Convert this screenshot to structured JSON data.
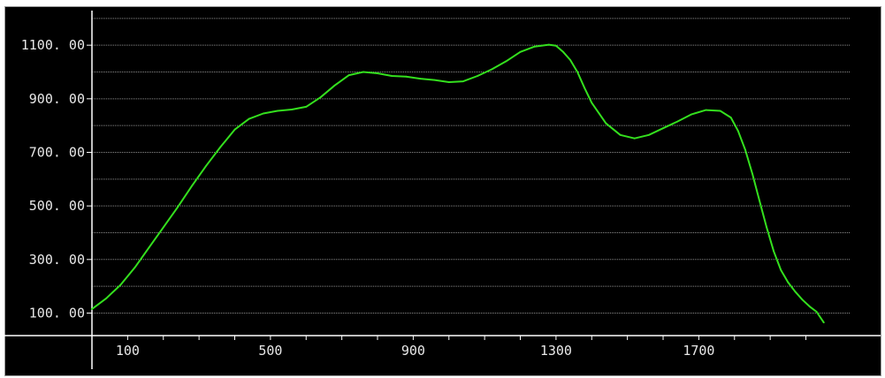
{
  "chart_data": {
    "type": "line",
    "title": "",
    "xlabel": "",
    "ylabel": "",
    "xlim": [
      0,
      2125
    ],
    "ylim": [
      0,
      1260
    ],
    "grid": true,
    "colors": {
      "background": "#000000",
      "line": "#34e01e",
      "grid": "#8c8c8c",
      "axis": "#ffffff",
      "text": "#e8e8e8"
    },
    "x_ticks": [
      {
        "value": 100,
        "label": "100"
      },
      {
        "value": 500,
        "label": "500"
      },
      {
        "value": 900,
        "label": "900"
      },
      {
        "value": 1300,
        "label": "1300"
      },
      {
        "value": 1700,
        "label": "1700"
      }
    ],
    "y_ticks": [
      {
        "value": 100,
        "label": "100. 00"
      },
      {
        "value": 300,
        "label": "300. 00"
      },
      {
        "value": 500,
        "label": "500. 00"
      },
      {
        "value": 700,
        "label": "700. 00"
      },
      {
        "value": 900,
        "label": "900. 00"
      },
      {
        "value": 1100,
        "label": "1100. 00"
      }
    ],
    "series": [
      {
        "x": [
          0,
          40,
          80,
          120,
          160,
          200,
          240,
          280,
          320,
          360,
          400,
          440,
          480,
          520,
          560,
          600,
          640,
          680,
          720,
          760,
          800,
          840,
          880,
          920,
          960,
          1000,
          1040,
          1080,
          1120,
          1160,
          1200,
          1240,
          1280,
          1300,
          1320,
          1340,
          1360,
          1380,
          1400,
          1440,
          1480,
          1520,
          1560,
          1600,
          1640,
          1680,
          1720,
          1760,
          1790,
          1810,
          1830,
          1850,
          1870,
          1890,
          1910,
          1930,
          1950,
          1970,
          1990,
          2010,
          2030,
          2050
        ],
        "y": [
          115,
          155,
          205,
          270,
          345,
          420,
          495,
          575,
          650,
          720,
          785,
          825,
          845,
          855,
          860,
          870,
          905,
          950,
          988,
          1000,
          995,
          985,
          983,
          975,
          970,
          962,
          965,
          985,
          1010,
          1040,
          1075,
          1095,
          1102,
          1098,
          1075,
          1045,
          1000,
          940,
          885,
          808,
          765,
          752,
          765,
          790,
          815,
          842,
          858,
          855,
          830,
          780,
          710,
          620,
          520,
          420,
          330,
          260,
          215,
          180,
          150,
          125,
          105,
          65
        ]
      }
    ]
  }
}
